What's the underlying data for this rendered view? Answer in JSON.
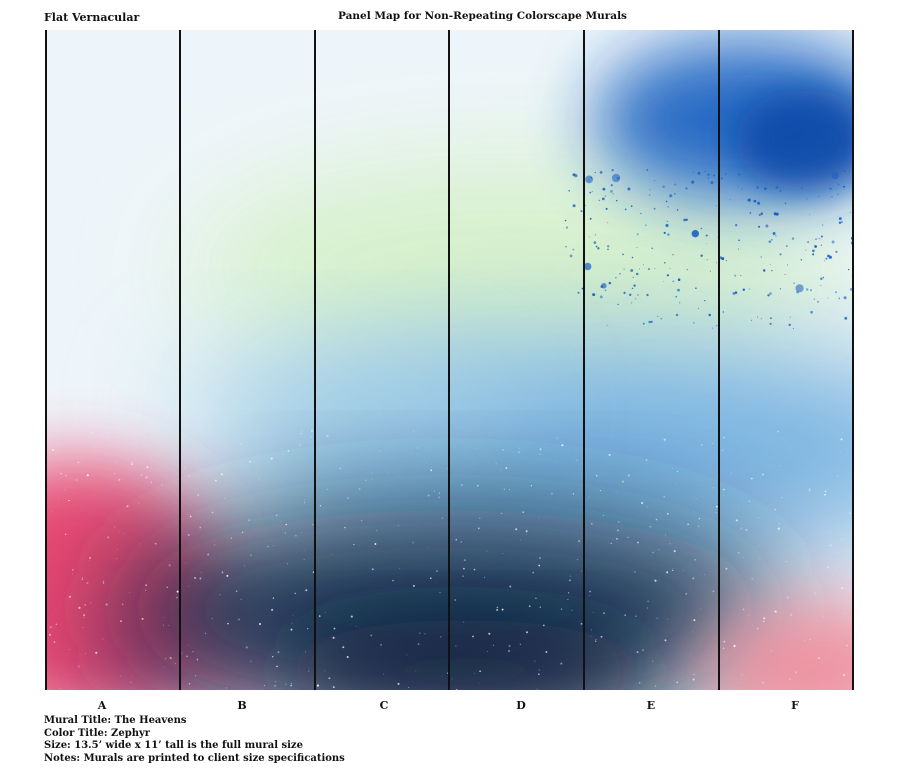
{
  "header": {
    "brand": "Flat Vernacular",
    "title": "Panel Map for Non-Repeating Colorscape Murals"
  },
  "panels": [
    {
      "label": "A"
    },
    {
      "label": "B"
    },
    {
      "label": "C"
    },
    {
      "label": "D"
    },
    {
      "label": "E"
    },
    {
      "label": "F"
    }
  ],
  "info": {
    "mural_title": "Mural Title: The Heavens",
    "color_title": "Color Title: Zephyr",
    "size": "Size: 13.5’ wide x 11’ tall is the full mural size",
    "notes": "Notes: Murals are printed to client size specifications"
  },
  "colors": {
    "pink": "#e8406a",
    "navy": "#0e2a4a",
    "sky_blue": "#6aaede",
    "royal_blue": "#1c5fc0",
    "mint": "#d8f2c8",
    "background": "#eef5fa"
  }
}
